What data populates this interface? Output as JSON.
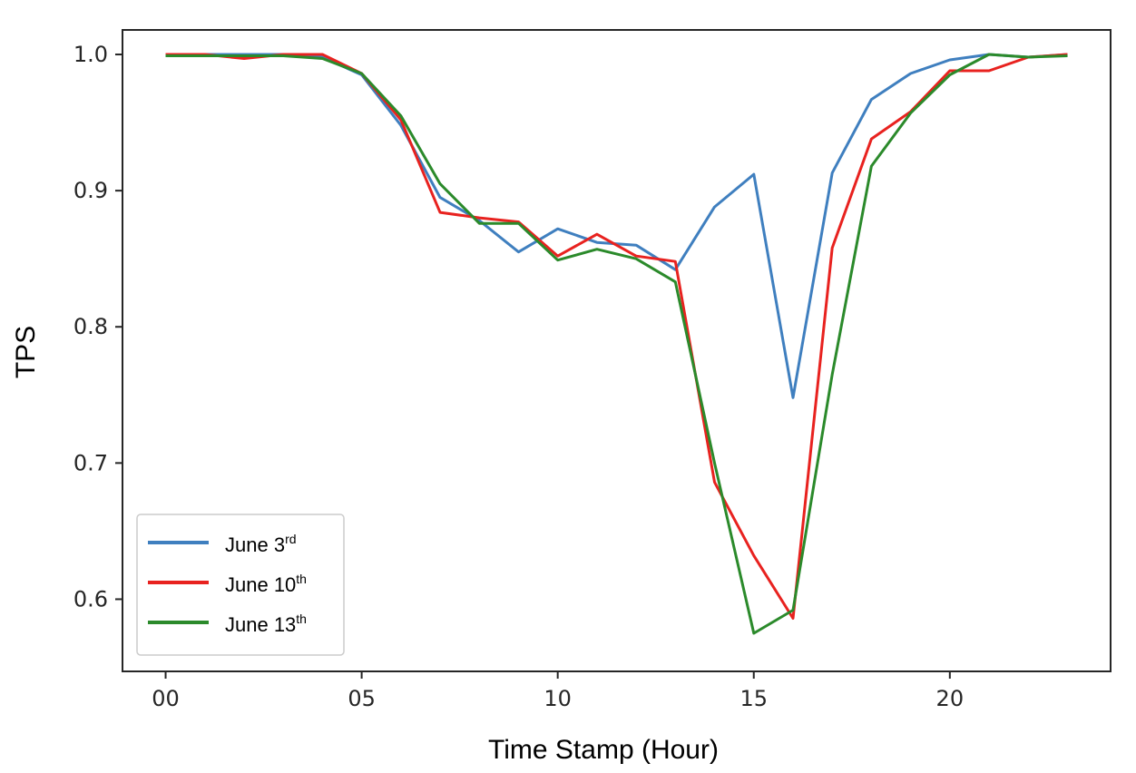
{
  "chart_data": {
    "type": "line",
    "xlabel": "Time Stamp (Hour)",
    "ylabel": "TPS",
    "xlim": [
      -1.1,
      24.1
    ],
    "ylim": [
      0.547,
      1.018
    ],
    "xticks": [
      {
        "value": 0,
        "label": "00"
      },
      {
        "value": 5,
        "label": "05"
      },
      {
        "value": 10,
        "label": "10"
      },
      {
        "value": 15,
        "label": "15"
      },
      {
        "value": 20,
        "label": "20"
      }
    ],
    "yticks": [
      {
        "value": 0.6,
        "label": "0.6"
      },
      {
        "value": 0.7,
        "label": "0.7"
      },
      {
        "value": 0.8,
        "label": "0.8"
      },
      {
        "value": 0.9,
        "label": "0.9"
      },
      {
        "value": 1.0,
        "label": "1.0"
      }
    ],
    "grid": false,
    "legend_position": "bottom-left",
    "x": [
      0,
      1,
      2,
      3,
      4,
      5,
      6,
      7,
      8,
      9,
      10,
      11,
      12,
      13,
      14,
      15,
      16,
      17,
      18,
      19,
      20,
      21,
      22,
      23
    ],
    "series": [
      {
        "name": "June 3rd",
        "name_base": "June 3",
        "name_sup": "rd",
        "color": "#3f7fbf",
        "values": [
          1.0,
          1.0,
          1.0,
          1.0,
          0.998,
          0.985,
          0.948,
          0.895,
          0.878,
          0.855,
          0.872,
          0.862,
          0.86,
          0.842,
          0.888,
          0.912,
          0.748,
          0.913,
          0.967,
          0.986,
          0.996,
          1.0,
          0.998,
          1.0
        ]
      },
      {
        "name": "June 10th",
        "name_base": "June 10",
        "name_sup": "th",
        "color": "#e8221f",
        "values": [
          1.0,
          1.0,
          0.997,
          1.0,
          1.0,
          0.986,
          0.952,
          0.884,
          0.88,
          0.877,
          0.852,
          0.868,
          0.852,
          0.848,
          0.686,
          0.632,
          0.586,
          0.858,
          0.938,
          0.958,
          0.988,
          0.988,
          0.998,
          1.0
        ]
      },
      {
        "name": "June 13th",
        "name_base": "June 13",
        "name_sup": "th",
        "color": "#2b8a2b",
        "values": [
          0.999,
          0.999,
          0.999,
          0.999,
          0.997,
          0.986,
          0.955,
          0.905,
          0.876,
          0.876,
          0.849,
          0.857,
          0.85,
          0.833,
          0.7,
          0.575,
          0.592,
          0.765,
          0.918,
          0.957,
          0.985,
          1.0,
          0.998,
          0.999
        ]
      }
    ]
  }
}
